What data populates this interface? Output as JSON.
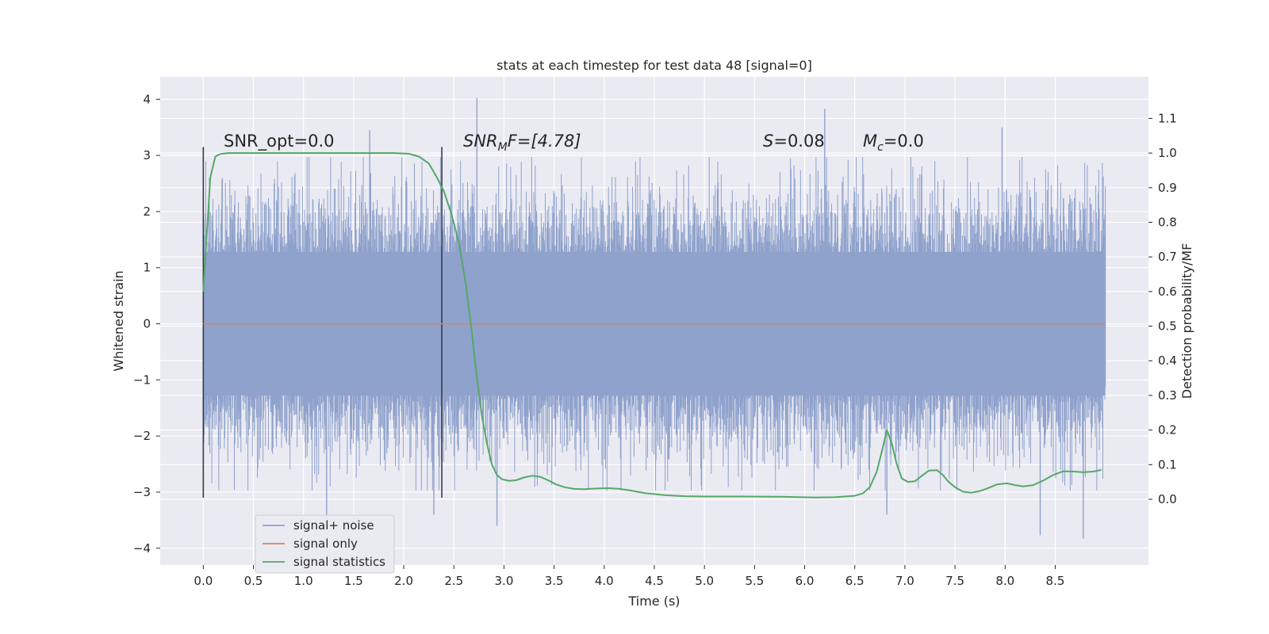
{
  "chart_data": {
    "type": "line",
    "title": "stats at each timestep for test data 48 [signal=0]",
    "xlabel": "Time (s)",
    "ylabel_left": "Whitened strain",
    "ylabel_right": "Detection probability/MF",
    "xlim": [
      -0.43,
      9.43
    ],
    "ylim_left": [
      -4.3,
      4.4
    ],
    "ylim_right": [
      -0.19,
      1.22
    ],
    "xticks": [
      "0.0",
      "0.5",
      "1.0",
      "1.5",
      "2.0",
      "2.5",
      "3.0",
      "3.5",
      "4.0",
      "4.5",
      "5.0",
      "5.5",
      "6.0",
      "6.5",
      "7.0",
      "7.5",
      "8.0",
      "8.5"
    ],
    "xtick_values": [
      0,
      0.5,
      1,
      1.5,
      2,
      2.5,
      3,
      3.5,
      4,
      4.5,
      5,
      5.5,
      6,
      6.5,
      7,
      7.5,
      8,
      8.5
    ],
    "yticks_left": [
      "4",
      "3",
      "2",
      "1",
      "0",
      "−1",
      "−2",
      "−3",
      "−4"
    ],
    "ytick_values_left": [
      4,
      3,
      2,
      1,
      0,
      -1,
      -2,
      -3,
      -4
    ],
    "yticks_right": [
      "1.1",
      "1.0",
      "0.9",
      "0.8",
      "0.7",
      "0.6",
      "0.5",
      "0.4",
      "0.3",
      "0.2",
      "0.1",
      "0.0"
    ],
    "ytick_values_right": [
      1.1,
      1.0,
      0.9,
      0.8,
      0.7,
      0.6,
      0.5,
      0.4,
      0.3,
      0.2,
      0.1,
      0.0
    ],
    "grid": true,
    "legend_position": "lower-left",
    "legend": [
      {
        "label": "signal+ noise",
        "color": "#8fa2cc"
      },
      {
        "label": "signal only",
        "color": "#dd8452"
      },
      {
        "label": "signal statistics",
        "color": "#55a868"
      }
    ],
    "annotations": {
      "snr_opt": "SNR_opt=0.0",
      "snr_mf_base": "SNR",
      "snr_mf_sub": "M",
      "snr_mf_rest": "F=[4.78]",
      "s_italic": "S",
      "s_rest": "=0.08",
      "mc_base": "M",
      "mc_sub": "c",
      "mc_rest": "=0.0"
    },
    "noise_series": {
      "name": "signal+ noise",
      "t_range": [
        0,
        9.0
      ],
      "envelope": [
        -3.3,
        3.2
      ],
      "peaks": [
        {
          "x": 2.73,
          "y": 4.02
        },
        {
          "x": 6.2,
          "y": 3.83
        },
        {
          "x": 1.66,
          "y": 3.45
        },
        {
          "x": 7.97,
          "y": 3.5
        },
        {
          "x": 1.23,
          "y": -3.5
        },
        {
          "x": 8.35,
          "y": -3.77
        },
        {
          "x": 8.78,
          "y": -3.83
        },
        {
          "x": 2.93,
          "y": -3.6
        },
        {
          "x": 6.82,
          "y": -3.4
        },
        {
          "x": 2.3,
          "y": -3.4
        }
      ]
    },
    "signal_only": {
      "name": "signal only",
      "t_range": [
        0,
        9.0
      ],
      "value": 0
    },
    "window_markers": [
      0.0,
      2.38
    ],
    "window_marker_range": [
      -3.1,
      3.15
    ],
    "series": [
      {
        "name": "signal statistics",
        "axis": "right",
        "x": [
          0.0,
          0.07,
          0.12,
          0.17,
          0.25,
          0.4,
          0.6,
          1.0,
          1.5,
          1.9,
          2.05,
          2.15,
          2.25,
          2.33,
          2.4,
          2.48,
          2.55,
          2.62,
          2.68,
          2.73,
          2.78,
          2.83,
          2.88,
          2.93,
          2.98,
          3.05,
          3.12,
          3.2,
          3.28,
          3.36,
          3.44,
          3.52,
          3.6,
          3.7,
          3.8,
          3.92,
          4.05,
          4.15,
          4.25,
          4.4,
          4.6,
          4.8,
          5.0,
          5.4,
          5.8,
          6.1,
          6.3,
          6.5,
          6.58,
          6.65,
          6.72,
          6.78,
          6.82,
          6.87,
          6.92,
          6.97,
          7.03,
          7.1,
          7.17,
          7.24,
          7.32,
          7.38,
          7.43,
          7.5,
          7.58,
          7.66,
          7.74,
          7.82,
          7.92,
          8.02,
          8.1,
          8.18,
          8.28,
          8.38,
          8.48,
          8.58,
          8.68,
          8.78,
          8.88,
          8.96
        ],
        "y": [
          0.6,
          0.93,
          0.99,
          0.997,
          1.0,
          1.0,
          1.0,
          1.0,
          1.0,
          1.0,
          0.998,
          0.99,
          0.97,
          0.93,
          0.89,
          0.82,
          0.74,
          0.62,
          0.48,
          0.35,
          0.24,
          0.16,
          0.1,
          0.07,
          0.058,
          0.053,
          0.055,
          0.063,
          0.068,
          0.065,
          0.055,
          0.043,
          0.035,
          0.03,
          0.029,
          0.031,
          0.032,
          0.03,
          0.026,
          0.018,
          0.012,
          0.009,
          0.008,
          0.008,
          0.007,
          0.005,
          0.006,
          0.01,
          0.017,
          0.035,
          0.08,
          0.15,
          0.2,
          0.16,
          0.1,
          0.06,
          0.05,
          0.052,
          0.068,
          0.083,
          0.084,
          0.07,
          0.052,
          0.035,
          0.022,
          0.019,
          0.023,
          0.031,
          0.043,
          0.046,
          0.041,
          0.037,
          0.041,
          0.054,
          0.07,
          0.081,
          0.08,
          0.078,
          0.08,
          0.085
        ],
        "color": "#55a868"
      }
    ]
  }
}
